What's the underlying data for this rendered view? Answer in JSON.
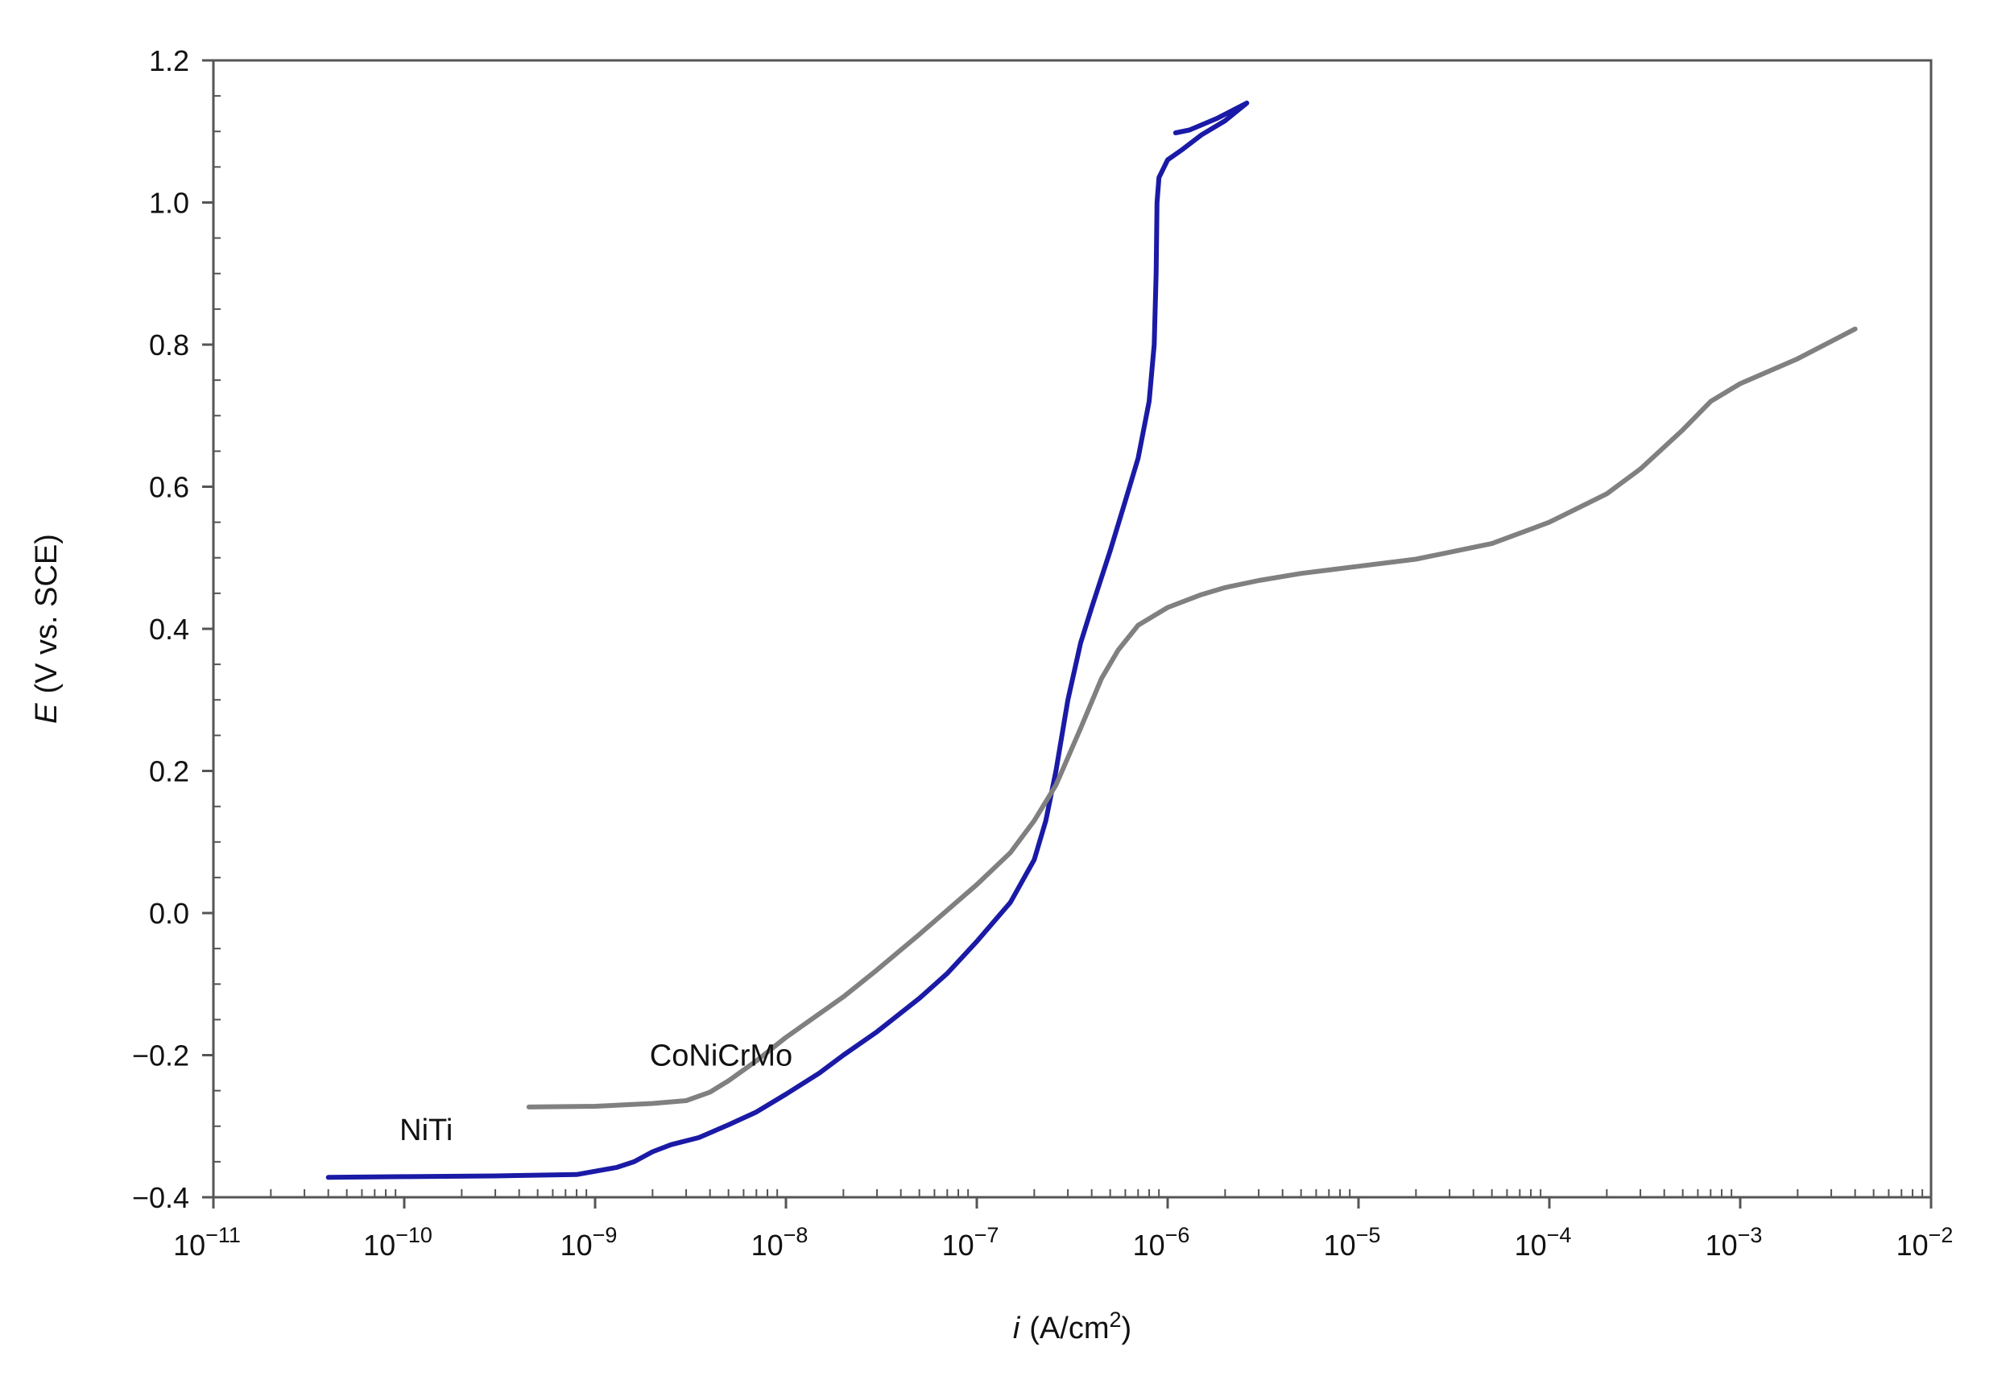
{
  "chart_data": {
    "type": "line",
    "title": "",
    "x_axis": {
      "scale": "log",
      "range": [
        1e-11,
        0.01
      ],
      "label_italic": "i",
      "label_rest": "(A/cm",
      "label_sup": "2",
      "label_close": ")",
      "ticks": [
        {
          "value": 1e-11,
          "base": "10",
          "exp": "−11"
        },
        {
          "value": 1e-10,
          "base": "10",
          "exp": "−10"
        },
        {
          "value": 1e-09,
          "base": "10",
          "exp": "−9"
        },
        {
          "value": 1e-08,
          "base": "10",
          "exp": "−8"
        },
        {
          "value": 1e-07,
          "base": "10",
          "exp": "−7"
        },
        {
          "value": 1e-06,
          "base": "10",
          "exp": "−6"
        },
        {
          "value": 1e-05,
          "base": "10",
          "exp": "−5"
        },
        {
          "value": 0.0001,
          "base": "10",
          "exp": "−4"
        },
        {
          "value": 0.001,
          "base": "10",
          "exp": "−3"
        },
        {
          "value": 0.01,
          "base": "10",
          "exp": "−2"
        }
      ]
    },
    "y_axis": {
      "scale": "linear",
      "range": [
        -0.4,
        1.2
      ],
      "label_italic": "E",
      "label_rest": "(V vs. SCE)",
      "ticks": [
        {
          "value": 1.2,
          "label": "1.2"
        },
        {
          "value": 1.0,
          "label": "1.0"
        },
        {
          "value": 0.8,
          "label": "0.8"
        },
        {
          "value": 0.6,
          "label": "0.6"
        },
        {
          "value": 0.4,
          "label": "0.4"
        },
        {
          "value": 0.2,
          "label": "0.2"
        },
        {
          "value": 0.0,
          "label": "0.0"
        },
        {
          "value": -0.2,
          "label": "−0.2"
        },
        {
          "value": -0.4,
          "label": "−0.4"
        }
      ],
      "minor_step": 0.05
    },
    "grid": false,
    "legend": "none",
    "series": [
      {
        "name": "NiTi",
        "color": "#1a1aa6",
        "label_at": [
          2.2e-11,
          -0.305
        ],
        "points": [
          [
            4e-11,
            -0.372
          ],
          [
            1e-10,
            -0.371
          ],
          [
            3e-10,
            -0.37
          ],
          [
            8e-10,
            -0.368
          ],
          [
            1.3e-09,
            -0.358
          ],
          [
            1.6e-09,
            -0.35
          ],
          [
            2e-09,
            -0.336
          ],
          [
            2.5e-09,
            -0.326
          ],
          [
            3.5e-09,
            -0.316
          ],
          [
            5e-09,
            -0.298
          ],
          [
            7e-09,
            -0.28
          ],
          [
            1e-08,
            -0.255
          ],
          [
            1.5e-08,
            -0.225
          ],
          [
            2e-08,
            -0.2
          ],
          [
            3e-08,
            -0.167
          ],
          [
            5e-08,
            -0.12
          ],
          [
            7e-08,
            -0.085
          ],
          [
            1e-07,
            -0.04
          ],
          [
            1.5e-07,
            0.015
          ],
          [
            2e-07,
            0.075
          ],
          [
            2.3e-07,
            0.13
          ],
          [
            2.6e-07,
            0.2
          ],
          [
            3e-07,
            0.3
          ],
          [
            3.5e-07,
            0.38
          ],
          [
            4e-07,
            0.43
          ],
          [
            5e-07,
            0.51
          ],
          [
            6e-07,
            0.58
          ],
          [
            7e-07,
            0.64
          ],
          [
            8e-07,
            0.72
          ],
          [
            8.5e-07,
            0.8
          ],
          [
            8.7e-07,
            0.9
          ],
          [
            8.8e-07,
            1.0
          ],
          [
            9e-07,
            1.035
          ],
          [
            1e-06,
            1.06
          ],
          [
            1.2e-06,
            1.075
          ],
          [
            1.5e-06,
            1.095
          ],
          [
            2e-06,
            1.115
          ],
          [
            2.6e-06,
            1.14
          ],
          [
            1.8e-06,
            1.118
          ],
          [
            1.3e-06,
            1.102
          ],
          [
            1.1e-06,
            1.098
          ]
        ]
      },
      {
        "name": "CoNiCrMo",
        "color": "#808080",
        "label_at": [
          4.5e-10,
          -0.2
        ],
        "points": [
          [
            4.5e-10,
            -0.273
          ],
          [
            1e-09,
            -0.272
          ],
          [
            2e-09,
            -0.268
          ],
          [
            3e-09,
            -0.264
          ],
          [
            4e-09,
            -0.252
          ],
          [
            5e-09,
            -0.236
          ],
          [
            7e-09,
            -0.208
          ],
          [
            1e-08,
            -0.175
          ],
          [
            2e-08,
            -0.118
          ],
          [
            3e-08,
            -0.08
          ],
          [
            5e-08,
            -0.03
          ],
          [
            1e-07,
            0.04
          ],
          [
            1.5e-07,
            0.085
          ],
          [
            2e-07,
            0.13
          ],
          [
            2.6e-07,
            0.18
          ],
          [
            3.5e-07,
            0.26
          ],
          [
            4.5e-07,
            0.33
          ],
          [
            5.5e-07,
            0.37
          ],
          [
            7e-07,
            0.405
          ],
          [
            1e-06,
            0.43
          ],
          [
            1.5e-06,
            0.448
          ],
          [
            2e-06,
            0.458
          ],
          [
            3e-06,
            0.468
          ],
          [
            5e-06,
            0.478
          ],
          [
            1e-05,
            0.488
          ],
          [
            2e-05,
            0.498
          ],
          [
            5e-05,
            0.52
          ],
          [
            0.0001,
            0.55
          ],
          [
            0.0002,
            0.59
          ],
          [
            0.0003,
            0.625
          ],
          [
            0.0005,
            0.68
          ],
          [
            0.0007,
            0.72
          ],
          [
            0.001,
            0.745
          ],
          [
            0.002,
            0.78
          ],
          [
            0.004,
            0.822
          ]
        ]
      }
    ]
  }
}
